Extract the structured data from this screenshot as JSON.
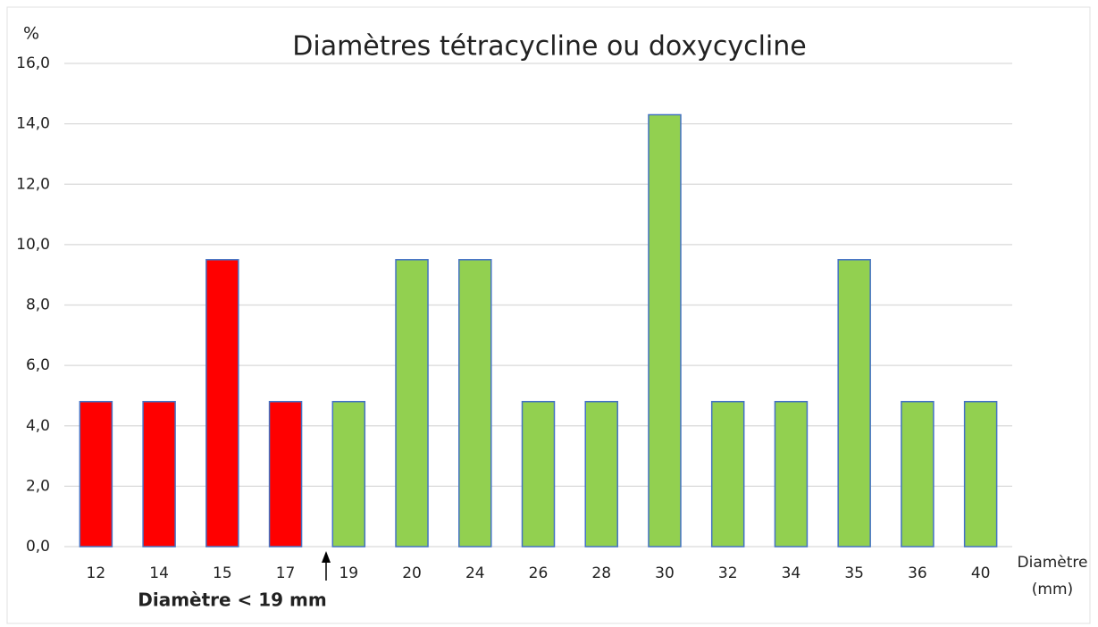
{
  "chart_data": {
    "type": "bar",
    "title": "Diamètres tétracycline ou doxycycline",
    "y_label": "%",
    "x_label": [
      "Diamètre",
      "(mm)"
    ],
    "annotation": "Diamètre < 19 mm",
    "categories": [
      "12",
      "14",
      "15",
      "17",
      "19",
      "20",
      "24",
      "26",
      "28",
      "30",
      "32",
      "34",
      "35",
      "36",
      "40"
    ],
    "values": [
      4.8,
      4.8,
      9.5,
      4.8,
      4.8,
      9.5,
      9.5,
      4.8,
      4.8,
      14.3,
      4.8,
      4.8,
      9.5,
      4.8,
      4.8
    ],
    "colors": [
      "#ff0000",
      "#ff0000",
      "#ff0000",
      "#ff0000",
      "#92d050",
      "#92d050",
      "#92d050",
      "#92d050",
      "#92d050",
      "#92d050",
      "#92d050",
      "#92d050",
      "#92d050",
      "#92d050",
      "#92d050"
    ],
    "edge_color": "#4472c4",
    "ylim": [
      0,
      16
    ],
    "yticks": [
      {
        "value": 0,
        "label": "0,0"
      },
      {
        "value": 2,
        "label": "2,0"
      },
      {
        "value": 4,
        "label": "4,0"
      },
      {
        "value": 6,
        "label": "6,0"
      },
      {
        "value": 8,
        "label": "8,0"
      },
      {
        "value": 10,
        "label": "10,0"
      },
      {
        "value": 12,
        "label": "12,0"
      },
      {
        "value": 14,
        "label": "14,0"
      },
      {
        "value": 16,
        "label": "16,0"
      }
    ],
    "grid": true
  }
}
